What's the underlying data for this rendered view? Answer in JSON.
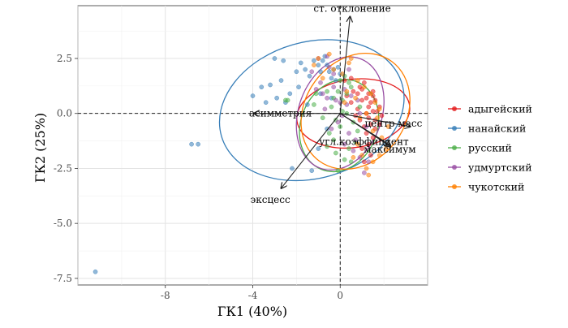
{
  "chart_data": {
    "type": "scatter",
    "subtype": "pca-biplot",
    "title": "",
    "xlabel": "ГК1 (40%)",
    "ylabel": "ГК2 (25%)",
    "xlim": [
      -12.0,
      4.0
    ],
    "ylim": [
      -7.8,
      4.9
    ],
    "x_ticks": [
      -8,
      -4,
      0
    ],
    "x_tick_labels": [
      "-8",
      "-4",
      "0"
    ],
    "y_ticks": [
      2.5,
      0.0,
      -2.5,
      -5.0,
      -7.5
    ],
    "y_tick_labels": [
      "2.5",
      "0.0",
      "-2.5",
      "-5.0",
      "-7.5"
    ],
    "grid": true,
    "reference_lines": {
      "x": 0,
      "y": 0,
      "style": "dashed"
    },
    "legend_position": "right",
    "series": [
      {
        "name": "адыгейский",
        "color": "#E41A1C",
        "points": [
          [
            0.2,
            1.5
          ],
          [
            0.5,
            1.6
          ],
          [
            0.9,
            1.2
          ],
          [
            1.0,
            1.1
          ],
          [
            1.1,
            1.4
          ],
          [
            1.3,
            0.9
          ],
          [
            1.5,
            0.8
          ],
          [
            1.2,
            0.7
          ],
          [
            1.4,
            0.5
          ],
          [
            1.6,
            0.6
          ],
          [
            1.8,
            0.3
          ],
          [
            1.3,
            0.3
          ],
          [
            1.0,
            0.6
          ],
          [
            0.8,
            0.9
          ],
          [
            0.6,
            1.0
          ],
          [
            1.7,
            0.1
          ],
          [
            1.5,
            0.1
          ],
          [
            1.2,
            0.0
          ],
          [
            1.9,
            -0.1
          ],
          [
            1.6,
            -0.3
          ],
          [
            1.4,
            -0.5
          ],
          [
            1.1,
            -0.6
          ],
          [
            0.9,
            -0.3
          ],
          [
            1.2,
            -0.9
          ],
          [
            1.5,
            -1.1
          ],
          [
            1.3,
            -1.4
          ],
          [
            1.0,
            -1.6
          ],
          [
            1.4,
            -1.9
          ],
          [
            1.1,
            -2.2
          ],
          [
            0.8,
            0.2
          ],
          [
            0.5,
            0.5
          ],
          [
            0.3,
            0.8
          ],
          [
            1.6,
            -0.7
          ],
          [
            1.8,
            -0.5
          ],
          [
            1.3,
            -0.2
          ],
          [
            0.7,
            -0.1
          ],
          [
            1.5,
            1.0
          ]
        ],
        "ellipse": {
          "center": [
            0.6,
            0.0
          ],
          "semi_axes": [
            2.6,
            1.55
          ],
          "angle_deg": -8
        }
      },
      {
        "name": "нанайский",
        "color": "#377EB8",
        "points": [
          [
            -11.2,
            -7.2
          ],
          [
            -6.8,
            -1.4
          ],
          [
            -6.5,
            -1.4
          ],
          [
            -4.0,
            0.8
          ],
          [
            -3.6,
            1.2
          ],
          [
            -3.4,
            0.5
          ],
          [
            -3.2,
            1.3
          ],
          [
            -2.9,
            0.7
          ],
          [
            -2.7,
            1.5
          ],
          [
            -2.5,
            0.5
          ],
          [
            -2.3,
            0.9
          ],
          [
            -2.0,
            1.9
          ],
          [
            -1.8,
            2.3
          ],
          [
            -1.6,
            2.0
          ],
          [
            -1.4,
            1.7
          ],
          [
            -1.2,
            2.4
          ],
          [
            -1.0,
            2.2
          ],
          [
            -0.9,
            1.9
          ],
          [
            -0.8,
            2.4
          ],
          [
            -0.7,
            2.6
          ],
          [
            -0.6,
            2.2
          ],
          [
            -0.5,
            1.9
          ],
          [
            -0.4,
            1.6
          ],
          [
            -0.3,
            2.0
          ],
          [
            -0.2,
            1.5
          ],
          [
            -0.1,
            2.1
          ],
          [
            0.0,
            1.8
          ],
          [
            -2.2,
            -2.5
          ],
          [
            -1.3,
            -2.6
          ],
          [
            -1.0,
            -1.6
          ],
          [
            -0.6,
            -0.7
          ],
          [
            -1.5,
            0.4
          ],
          [
            -3.0,
            2.5
          ],
          [
            -2.6,
            2.4
          ],
          [
            -1.9,
            1.2
          ],
          [
            -0.9,
            0.9
          ],
          [
            -0.4,
            0.7
          ]
        ],
        "ellipse": {
          "center": [
            -1.3,
            0.15
          ],
          "semi_axes": [
            4.3,
            3.1
          ],
          "angle_deg": -16
        }
      },
      {
        "name": "русский",
        "color": "#4DAF4A",
        "points": [
          [
            -2.4,
            0.6
          ],
          [
            -2.5,
            0.6
          ],
          [
            -1.1,
            0.9
          ],
          [
            -0.6,
            1.0
          ],
          [
            -0.3,
            0.7
          ],
          [
            0.1,
            0.6
          ],
          [
            0.3,
            0.9
          ],
          [
            0.5,
            1.2
          ],
          [
            0.2,
            1.7
          ],
          [
            0.0,
            1.5
          ],
          [
            -0.1,
            1.0
          ],
          [
            -0.4,
            0.3
          ],
          [
            0.1,
            0.1
          ],
          [
            0.3,
            0.0
          ],
          [
            -0.2,
            -0.3
          ],
          [
            0.0,
            -0.6
          ],
          [
            -0.5,
            -0.9
          ],
          [
            -0.3,
            -1.2
          ],
          [
            -0.6,
            -1.5
          ],
          [
            -0.2,
            -1.8
          ],
          [
            0.2,
            -2.1
          ],
          [
            0.4,
            -1.6
          ],
          [
            -0.1,
            -2.6
          ],
          [
            0.5,
            -2.2
          ],
          [
            0.7,
            -1.3
          ],
          [
            0.8,
            -0.8
          ],
          [
            0.6,
            -0.4
          ],
          [
            0.9,
            0.3
          ],
          [
            -0.8,
            -0.2
          ],
          [
            -1.2,
            0.4
          ],
          [
            0.4,
            1.4
          ]
        ],
        "ellipse": {
          "center": [
            -0.05,
            -0.55
          ],
          "semi_axes": [
            1.75,
            2.15
          ],
          "angle_deg": 22
        }
      },
      {
        "name": "удмуртский",
        "color": "#984EA3",
        "points": [
          [
            -1.3,
            1.9
          ],
          [
            -1.0,
            2.5
          ],
          [
            -0.9,
            1.4
          ],
          [
            -0.8,
            0.9
          ],
          [
            -0.6,
            0.7
          ],
          [
            -0.5,
            2.1
          ],
          [
            -0.3,
            1.2
          ],
          [
            -0.2,
            0.6
          ],
          [
            0.0,
            0.5
          ],
          [
            0.2,
            1.1
          ],
          [
            0.3,
            0.4
          ],
          [
            0.1,
            -0.1
          ],
          [
            -0.1,
            -0.4
          ],
          [
            -0.4,
            -0.7
          ],
          [
            0.4,
            -0.9
          ],
          [
            0.7,
            -1.2
          ],
          [
            0.2,
            -1.4
          ],
          [
            0.6,
            -1.7
          ],
          [
            0.9,
            -2.0
          ],
          [
            1.1,
            -2.7
          ],
          [
            1.3,
            -2.2
          ],
          [
            0.5,
            0.8
          ],
          [
            0.8,
            0.6
          ],
          [
            -0.7,
            0.2
          ],
          [
            -1.1,
            1.1
          ],
          [
            0.9,
            0.0
          ],
          [
            1.2,
            -0.6
          ],
          [
            -0.3,
            1.8
          ],
          [
            -0.6,
            2.6
          ],
          [
            0.4,
            2.0
          ]
        ],
        "ellipse": {
          "center": [
            0.0,
            0.0
          ],
          "semi_axes": [
            1.9,
            2.65
          ],
          "angle_deg": 20
        }
      },
      {
        "name": "чукотский",
        "color": "#FF7F00",
        "points": [
          [
            -1.2,
            2.2
          ],
          [
            -1.0,
            2.5
          ],
          [
            -0.5,
            2.7
          ],
          [
            -0.3,
            2.0
          ],
          [
            0.1,
            1.8
          ],
          [
            0.4,
            2.3
          ],
          [
            0.8,
            1.5
          ],
          [
            1.1,
            1.2
          ],
          [
            1.4,
            0.9
          ],
          [
            1.6,
            0.5
          ],
          [
            1.8,
            0.2
          ],
          [
            1.2,
            0.0
          ],
          [
            0.9,
            -0.2
          ],
          [
            1.5,
            -0.8
          ],
          [
            1.9,
            -1.1
          ],
          [
            2.1,
            -1.6
          ],
          [
            1.8,
            -1.9
          ],
          [
            1.5,
            -2.2
          ],
          [
            1.2,
            -2.5
          ],
          [
            1.0,
            -1.9
          ],
          [
            0.8,
            -1.4
          ],
          [
            0.6,
            -2.0
          ],
          [
            1.3,
            -2.8
          ],
          [
            0.3,
            1.0
          ],
          [
            0.2,
            0.5
          ],
          [
            1.7,
            -0.2
          ],
          [
            2.2,
            -0.6
          ],
          [
            0.5,
            2.5
          ],
          [
            -0.8,
            1.6
          ],
          [
            0.7,
            0.7
          ]
        ],
        "ellipse": {
          "center": [
            0.7,
            0.1
          ],
          "semi_axes": [
            2.3,
            2.8
          ],
          "angle_deg": 36
        }
      }
    ],
    "loadings": [
      {
        "label": "ст. отклонение",
        "x": 0.45,
        "y": 4.4
      },
      {
        "label": "асимметрия",
        "x": -3.95,
        "y": 0.0
      },
      {
        "label": "центр масс",
        "x": 3.2,
        "y": -0.6
      },
      {
        "label": "угл.коэффициент",
        "x": 2.3,
        "y": -1.5
      },
      {
        "label": "максимум",
        "x": 2.3,
        "y": -1.45
      },
      {
        "label": "эксцесс",
        "x": -2.7,
        "y": -3.4
      }
    ]
  }
}
